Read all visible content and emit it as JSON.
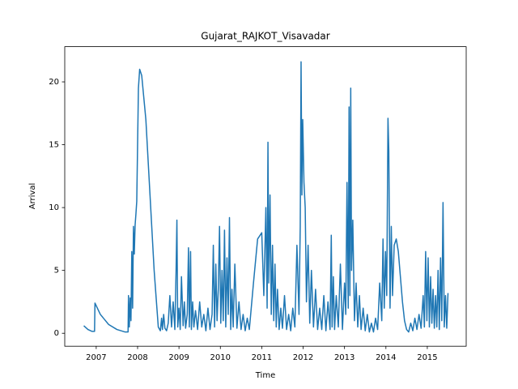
{
  "chart_data": {
    "type": "line",
    "title": "Gujarat_RAJKOT_Visavadar",
    "xlabel": "Time",
    "ylabel": "Arrival",
    "color": "#1f77b4",
    "x": [
      2006.7,
      2006.8,
      2006.9,
      2006.96,
      2006.97,
      2007.1,
      2007.3,
      2007.5,
      2007.7,
      2007.77,
      2007.78,
      2007.8,
      2007.82,
      2007.84,
      2007.86,
      2007.88,
      2007.9,
      2007.92,
      2007.94,
      2007.96,
      2007.98,
      2008.02,
      2008.05,
      2008.1,
      2008.2,
      2008.3,
      2008.4,
      2008.5,
      2008.55,
      2008.58,
      2008.6,
      2008.63,
      2008.66,
      2008.7,
      2008.74,
      2008.78,
      2008.82,
      2008.86,
      2008.9,
      2008.93,
      2008.95,
      2008.97,
      2009.0,
      2009.03,
      2009.06,
      2009.1,
      2009.13,
      2009.16,
      2009.2,
      2009.23,
      2009.25,
      2009.28,
      2009.3,
      2009.33,
      2009.36,
      2009.4,
      2009.45,
      2009.5,
      2009.55,
      2009.6,
      2009.65,
      2009.7,
      2009.75,
      2009.8,
      2009.83,
      2009.86,
      2009.89,
      2009.92,
      2009.95,
      2009.98,
      2010.01,
      2010.04,
      2010.07,
      2010.1,
      2010.13,
      2010.16,
      2010.19,
      2010.22,
      2010.25,
      2010.28,
      2010.31,
      2010.35,
      2010.4,
      2010.45,
      2010.5,
      2010.55,
      2010.6,
      2010.65,
      2010.7,
      2010.8,
      2010.9,
      2011.0,
      2011.05,
      2011.1,
      2011.13,
      2011.15,
      2011.17,
      2011.2,
      2011.23,
      2011.26,
      2011.29,
      2011.32,
      2011.35,
      2011.38,
      2011.42,
      2011.46,
      2011.5,
      2011.55,
      2011.6,
      2011.65,
      2011.7,
      2011.75,
      2011.8,
      2011.85,
      2011.9,
      2011.93,
      2011.95,
      2011.97,
      2011.99,
      2012.02,
      2012.05,
      2012.08,
      2012.12,
      2012.16,
      2012.2,
      2012.25,
      2012.3,
      2012.35,
      2012.4,
      2012.45,
      2012.5,
      2012.55,
      2012.6,
      2012.65,
      2012.68,
      2012.7,
      2012.73,
      2012.76,
      2012.8,
      2012.85,
      2012.9,
      2012.95,
      2013.0,
      2013.03,
      2013.06,
      2013.09,
      2013.11,
      2013.13,
      2013.15,
      2013.17,
      2013.2,
      2013.24,
      2013.28,
      2013.32,
      2013.36,
      2013.4,
      2013.45,
      2013.5,
      2013.55,
      2013.6,
      2013.65,
      2013.7,
      2013.75,
      2013.8,
      2013.85,
      2013.9,
      2013.93,
      2013.96,
      2013.99,
      2014.02,
      2014.05,
      2014.07,
      2014.1,
      2014.13,
      2014.16,
      2014.2,
      2014.25,
      2014.3,
      2014.35,
      2014.4,
      2014.45,
      2014.5,
      2014.55,
      2014.6,
      2014.65,
      2014.7,
      2014.75,
      2014.8,
      2014.85,
      2014.9,
      2014.93,
      2014.96,
      2014.99,
      2015.02,
      2015.05,
      2015.08,
      2015.11,
      2015.14,
      2015.17,
      2015.2,
      2015.23,
      2015.26,
      2015.29,
      2015.32,
      2015.35,
      2015.38,
      2015.41,
      2015.44,
      2015.47,
      2015.5
    ],
    "values": [
      0.6,
      0.3,
      0.15,
      0.15,
      2.4,
      1.5,
      0.7,
      0.3,
      0.1,
      0.1,
      3.0,
      0.5,
      2.8,
      1.0,
      6.5,
      2.0,
      8.5,
      6.3,
      8.6,
      9.5,
      10.5,
      19.5,
      21.0,
      20.5,
      17.0,
      11.0,
      5.0,
      0.5,
      0.2,
      1.2,
      0.3,
      1.5,
      0.4,
      0.2,
      0.8,
      3.0,
      0.5,
      2.5,
      0.3,
      5.0,
      9.0,
      0.5,
      2.0,
      0.3,
      4.5,
      0.6,
      2.5,
      0.4,
      1.5,
      6.8,
      0.5,
      6.5,
      0.3,
      2.5,
      0.5,
      1.8,
      0.3,
      2.5,
      0.5,
      1.5,
      0.2,
      2.0,
      0.3,
      1.5,
      7.0,
      0.5,
      5.5,
      1.0,
      3.5,
      8.5,
      0.8,
      5.0,
      1.0,
      8.2,
      0.5,
      6.0,
      1.5,
      9.2,
      0.3,
      3.5,
      0.5,
      5.5,
      0.4,
      2.5,
      0.3,
      1.5,
      0.2,
      1.2,
      0.3,
      4.0,
      7.5,
      8.0,
      3.0,
      10.0,
      2.0,
      15.2,
      4.0,
      11.0,
      1.5,
      7.0,
      1.0,
      5.5,
      0.5,
      3.5,
      0.3,
      2.0,
      0.4,
      3.0,
      0.3,
      1.5,
      0.2,
      2.0,
      0.5,
      7.0,
      1.5,
      8.5,
      21.6,
      11.0,
      17.0,
      12.0,
      10.0,
      2.5,
      7.0,
      0.8,
      5.0,
      0.5,
      3.5,
      0.3,
      2.0,
      0.3,
      3.0,
      0.2,
      2.5,
      0.3,
      7.8,
      0.5,
      4.5,
      0.3,
      3.0,
      0.5,
      5.5,
      0.3,
      4.0,
      1.5,
      12.0,
      2.0,
      18.0,
      3.0,
      19.5,
      5.0,
      9.0,
      1.0,
      4.0,
      0.5,
      3.0,
      0.3,
      2.0,
      0.2,
      1.5,
      0.1,
      0.8,
      0.1,
      1.2,
      0.3,
      4.0,
      1.0,
      7.5,
      2.0,
      6.5,
      3.0,
      17.1,
      14.5,
      2.0,
      8.5,
      3.0,
      7.0,
      7.5,
      6.5,
      4.5,
      2.5,
      1.0,
      0.3,
      0.1,
      0.8,
      0.2,
      1.2,
      0.3,
      1.5,
      0.4,
      3.0,
      0.5,
      6.5,
      1.0,
      6.0,
      0.5,
      4.5,
      0.8,
      3.5,
      0.4,
      3.0,
      0.5,
      5.0,
      0.3,
      6.0,
      1.0,
      10.4,
      0.5,
      3.0,
      0.4,
      3.2
    ],
    "xlim": [
      2006.24,
      2015.94
    ],
    "xticks": [
      2007,
      2008,
      2009,
      2010,
      2011,
      2012,
      2013,
      2014,
      2015
    ],
    "ylim": [
      -1.03,
      22.8
    ],
    "yticks": [
      0,
      5,
      10,
      15,
      20
    ],
    "grid": false
  }
}
